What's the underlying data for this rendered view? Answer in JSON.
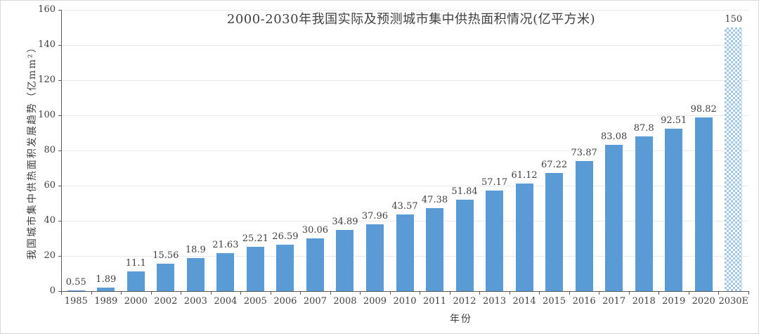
{
  "chart_data": {
    "type": "bar",
    "title": "2000-2030年我国实际及预测城市集中供热面积情况(亿平方米)",
    "xlabel": "年份",
    "ylabel": "我国城市集中供热面积发展趋势（亿mm²）",
    "categories": [
      "1985",
      "1989",
      "2000",
      "2002",
      "2003",
      "2004",
      "2005",
      "2006",
      "2007",
      "2008",
      "2009",
      "2010",
      "2011",
      "2012",
      "2013",
      "2014",
      "2015",
      "2016",
      "2017",
      "2018",
      "2019",
      "2020",
      "2030E"
    ],
    "values": [
      0.55,
      1.89,
      11.1,
      15.56,
      18.9,
      21.63,
      25.21,
      26.59,
      30.06,
      34.89,
      37.96,
      43.57,
      47.38,
      51.84,
      57.17,
      61.12,
      67.22,
      73.87,
      83.08,
      87.8,
      92.51,
      98.82,
      150
    ],
    "value_labels": [
      "0.55",
      "1.89",
      "11.1",
      "15.56",
      "18.9",
      "21.63",
      "25.21",
      "26.59",
      "30.06",
      "34.89",
      "37.96",
      "43.57",
      "47.38",
      "51.84",
      "57.17",
      "61.12",
      "67.22",
      "73.87",
      "83.08",
      "87.8",
      "92.51",
      "98.82",
      "150"
    ],
    "forecast_index": 22,
    "ylim": [
      0,
      160
    ],
    "yticks": [
      0,
      20,
      40,
      60,
      80,
      100,
      120,
      140,
      160
    ],
    "grid": true,
    "legend_position": "none",
    "bar_color": "#5b9bd5",
    "forecast_pattern_color": "#a3c7e8",
    "axis_color": "#595959",
    "gridline_color": "#e9e9e9",
    "text_color": "#404040"
  }
}
